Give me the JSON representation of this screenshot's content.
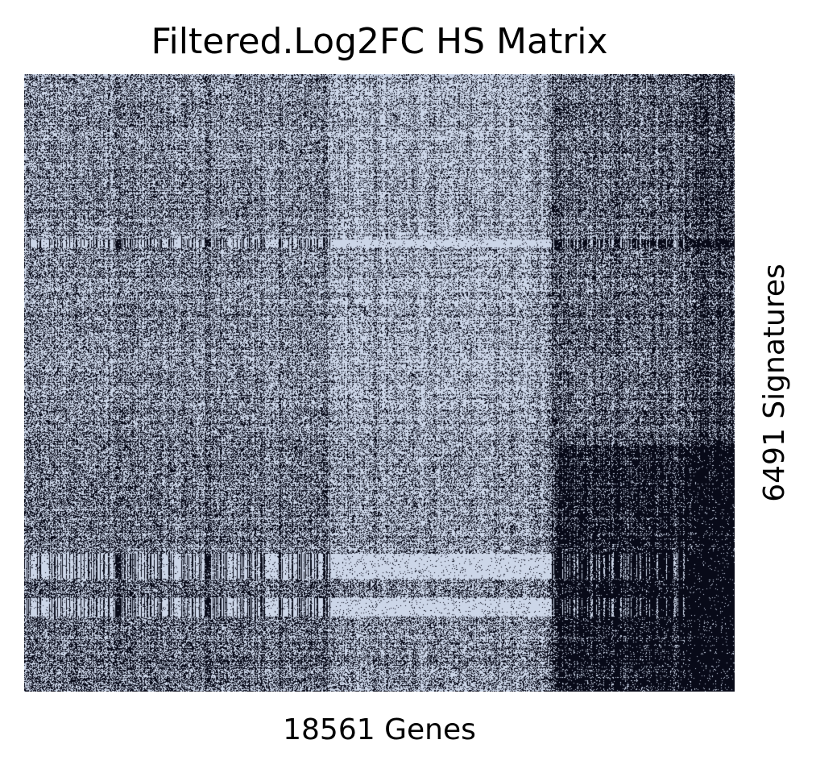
{
  "chart_data": {
    "type": "heatmap",
    "title": "Filtered.Log2FC HS Matrix",
    "xlabel": "18561 Genes",
    "ylabel": "6491 Signatures",
    "n_columns": 18561,
    "n_rows": 6491,
    "ticks": "none",
    "colorbar": "none",
    "colors": {
      "high": "#ccd6e8",
      "low": "#000000"
    }
  }
}
